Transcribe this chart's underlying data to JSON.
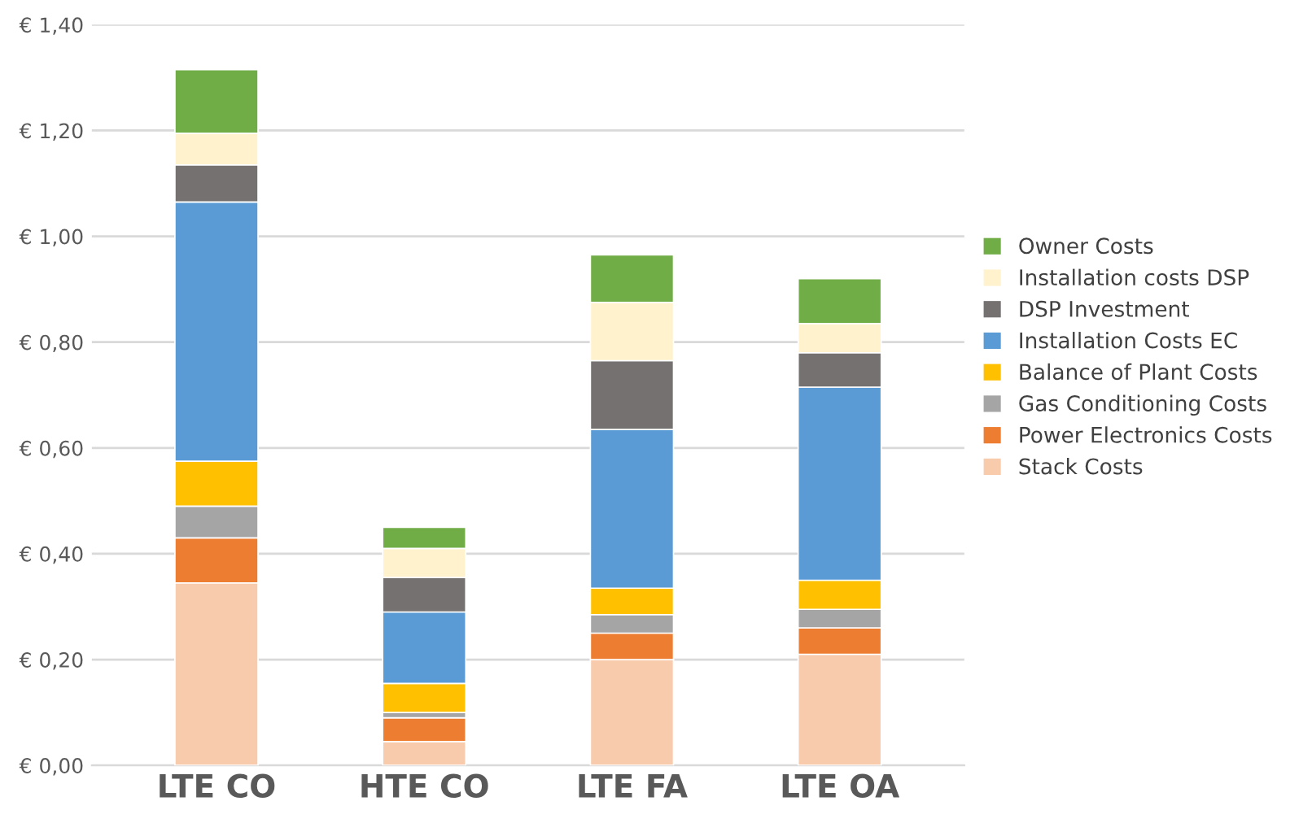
{
  "chart_data": {
    "type": "bar",
    "stacked": true,
    "categories": [
      "LTE CO",
      "HTE CO",
      "LTE FA",
      "LTE OA"
    ],
    "series": [
      {
        "name": "Stack Costs",
        "color": "#f8cbad",
        "values": [
          0.345,
          0.045,
          0.2,
          0.21
        ]
      },
      {
        "name": "Power Electronics Costs",
        "color": "#ed7d31",
        "values": [
          0.085,
          0.045,
          0.05,
          0.05
        ]
      },
      {
        "name": "Gas Conditioning Costs",
        "color": "#a5a5a5",
        "values": [
          0.06,
          0.01,
          0.035,
          0.035
        ]
      },
      {
        "name": "Balance of Plant Costs",
        "color": "#ffc000",
        "values": [
          0.085,
          0.055,
          0.05,
          0.055
        ]
      },
      {
        "name": "Installation Costs EC",
        "color": "#5b9bd5",
        "values": [
          0.49,
          0.135,
          0.3,
          0.365
        ]
      },
      {
        "name": "DSP Investment",
        "color": "#767171",
        "values": [
          0.07,
          0.065,
          0.13,
          0.065
        ]
      },
      {
        "name": "Installation costs DSP",
        "color": "#fff2cc",
        "values": [
          0.06,
          0.055,
          0.11,
          0.055
        ]
      },
      {
        "name": "Owner Costs",
        "color": "#70ad47",
        "values": [
          0.12,
          0.04,
          0.09,
          0.085
        ]
      }
    ],
    "ylim": [
      0,
      1.4
    ],
    "yticks": [
      {
        "value": 0,
        "label": "€ 0,00"
      },
      {
        "value": 0.2,
        "label": "€ 0,20"
      },
      {
        "value": 0.4,
        "label": "€ 0,40"
      },
      {
        "value": 0.6,
        "label": "€ 0,60"
      },
      {
        "value": 0.8,
        "label": "€ 0,80"
      },
      {
        "value": 1.0,
        "label": "€ 1,00"
      },
      {
        "value": 1.2,
        "label": "€ 1,20"
      },
      {
        "value": 1.4,
        "label": "€ 1,40"
      }
    ],
    "grid": "y",
    "legend": "right"
  }
}
